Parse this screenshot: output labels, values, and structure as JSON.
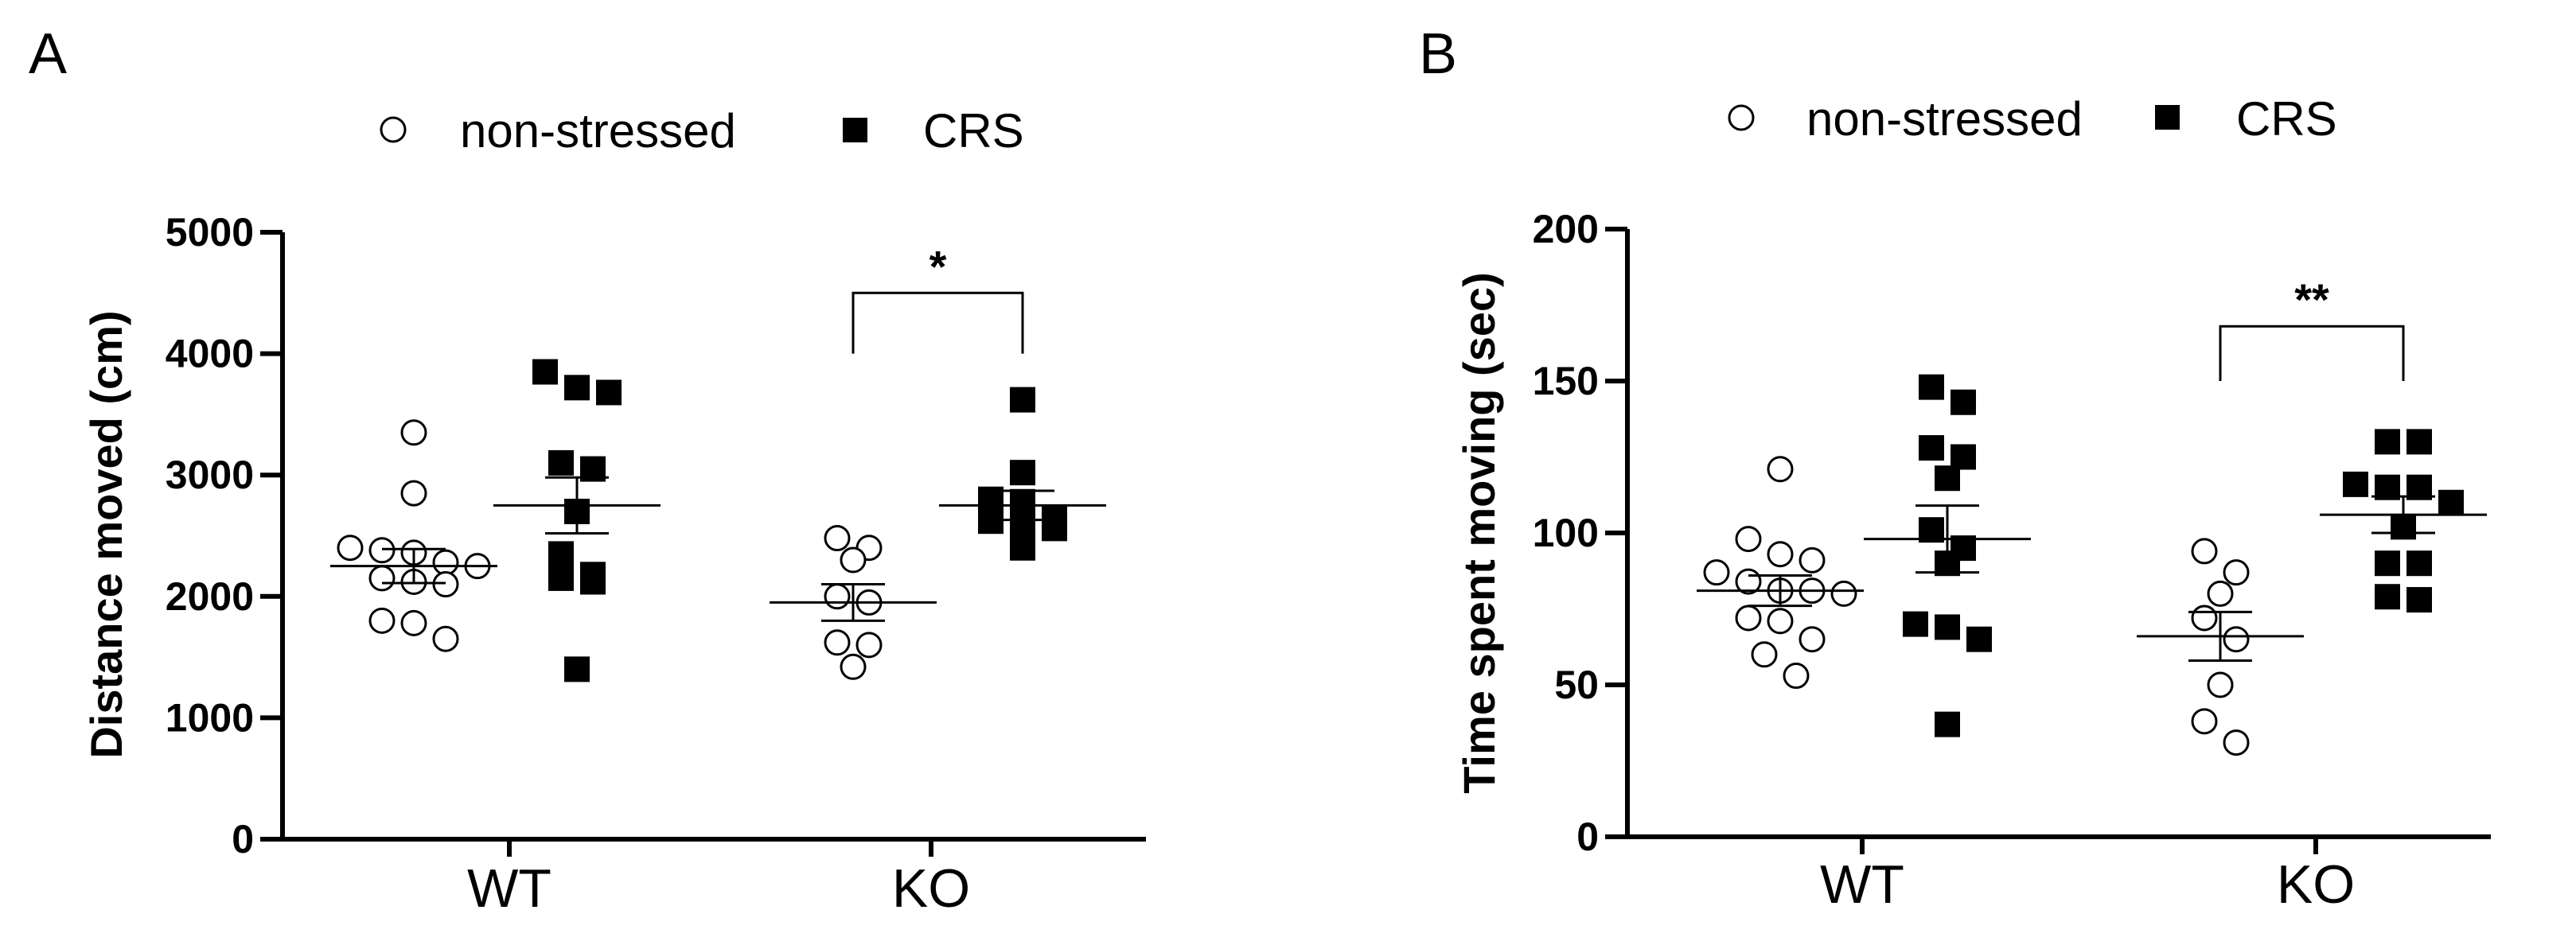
{
  "legend": {
    "items": [
      {
        "label": "non-stressed",
        "marker": "open-circle"
      },
      {
        "label": "CRS",
        "marker": "filled-square"
      }
    ]
  },
  "colors": {
    "ink": "#000000",
    "background": "#ffffff"
  },
  "chart_data": [
    {
      "panel": "A",
      "type": "scatter",
      "ylabel": "Distance moved  (cm)",
      "ylim": [
        0,
        5000
      ],
      "yticks": [
        "0",
        "1000",
        "2000",
        "3000",
        "4000",
        "5000"
      ],
      "categories": [
        "WT",
        "KO"
      ],
      "series": [
        {
          "name": "non-stressed",
          "groups": [
            {
              "category": "WT",
              "values": [
                3350,
                2850,
                2400,
                2380,
                2360,
                2280,
                2250,
                2150,
                2120,
                2100,
                1800,
                1780,
                1650
              ],
              "mean": 2250,
              "sem": 140
            },
            {
              "category": "KO",
              "values": [
                2480,
                2400,
                2300,
                2000,
                1950,
                1620,
                1600,
                1420
              ],
              "mean": 1950,
              "sem": 150
            }
          ]
        },
        {
          "name": "CRS",
          "groups": [
            {
              "category": "WT",
              "values": [
                3850,
                3720,
                3680,
                3100,
                3050,
                2700,
                2350,
                2180,
                2150,
                2120,
                1400
              ],
              "mean": 2750,
              "sem": 230
            },
            {
              "category": "KO",
              "values": [
                3620,
                3020,
                2800,
                2780,
                2650,
                2620,
                2600,
                2560,
                2400
              ],
              "mean": 2750,
              "sem": 120
            }
          ]
        }
      ],
      "annotations": [
        {
          "category": "KO",
          "label": "*",
          "bracket_top": 4500,
          "bracket_bottom": 4000
        }
      ]
    },
    {
      "panel": "B",
      "type": "scatter",
      "ylabel": "Time spent moving (sec)",
      "ylim": [
        0,
        200
      ],
      "yticks": [
        "0",
        "50",
        "100",
        "150",
        "200"
      ],
      "categories": [
        "WT",
        "KO"
      ],
      "series": [
        {
          "name": "non-stressed",
          "groups": [
            {
              "category": "WT",
              "values": [
                121,
                98,
                93,
                91,
                87,
                84,
                81,
                81,
                80,
                72,
                71,
                65,
                60,
                53
              ],
              "mean": 81,
              "sem": 5
            },
            {
              "category": "KO",
              "values": [
                94,
                87,
                80,
                72,
                65,
                50,
                38,
                31
              ],
              "mean": 66,
              "sem": 8
            }
          ]
        },
        {
          "name": "CRS",
          "groups": [
            {
              "category": "WT",
              "values": [
                148,
                143,
                128,
                125,
                118,
                101,
                95,
                90,
                70,
                69,
                65,
                37
              ],
              "mean": 98,
              "sem": 11
            },
            {
              "category": "KO",
              "values": [
                130,
                130,
                116,
                115,
                115,
                110,
                102,
                90,
                90,
                79,
                78
              ],
              "mean": 106,
              "sem": 6
            }
          ]
        }
      ],
      "annotations": [
        {
          "category": "KO",
          "label": "**",
          "bracket_top": 168,
          "bracket_bottom": 150
        }
      ]
    }
  ]
}
